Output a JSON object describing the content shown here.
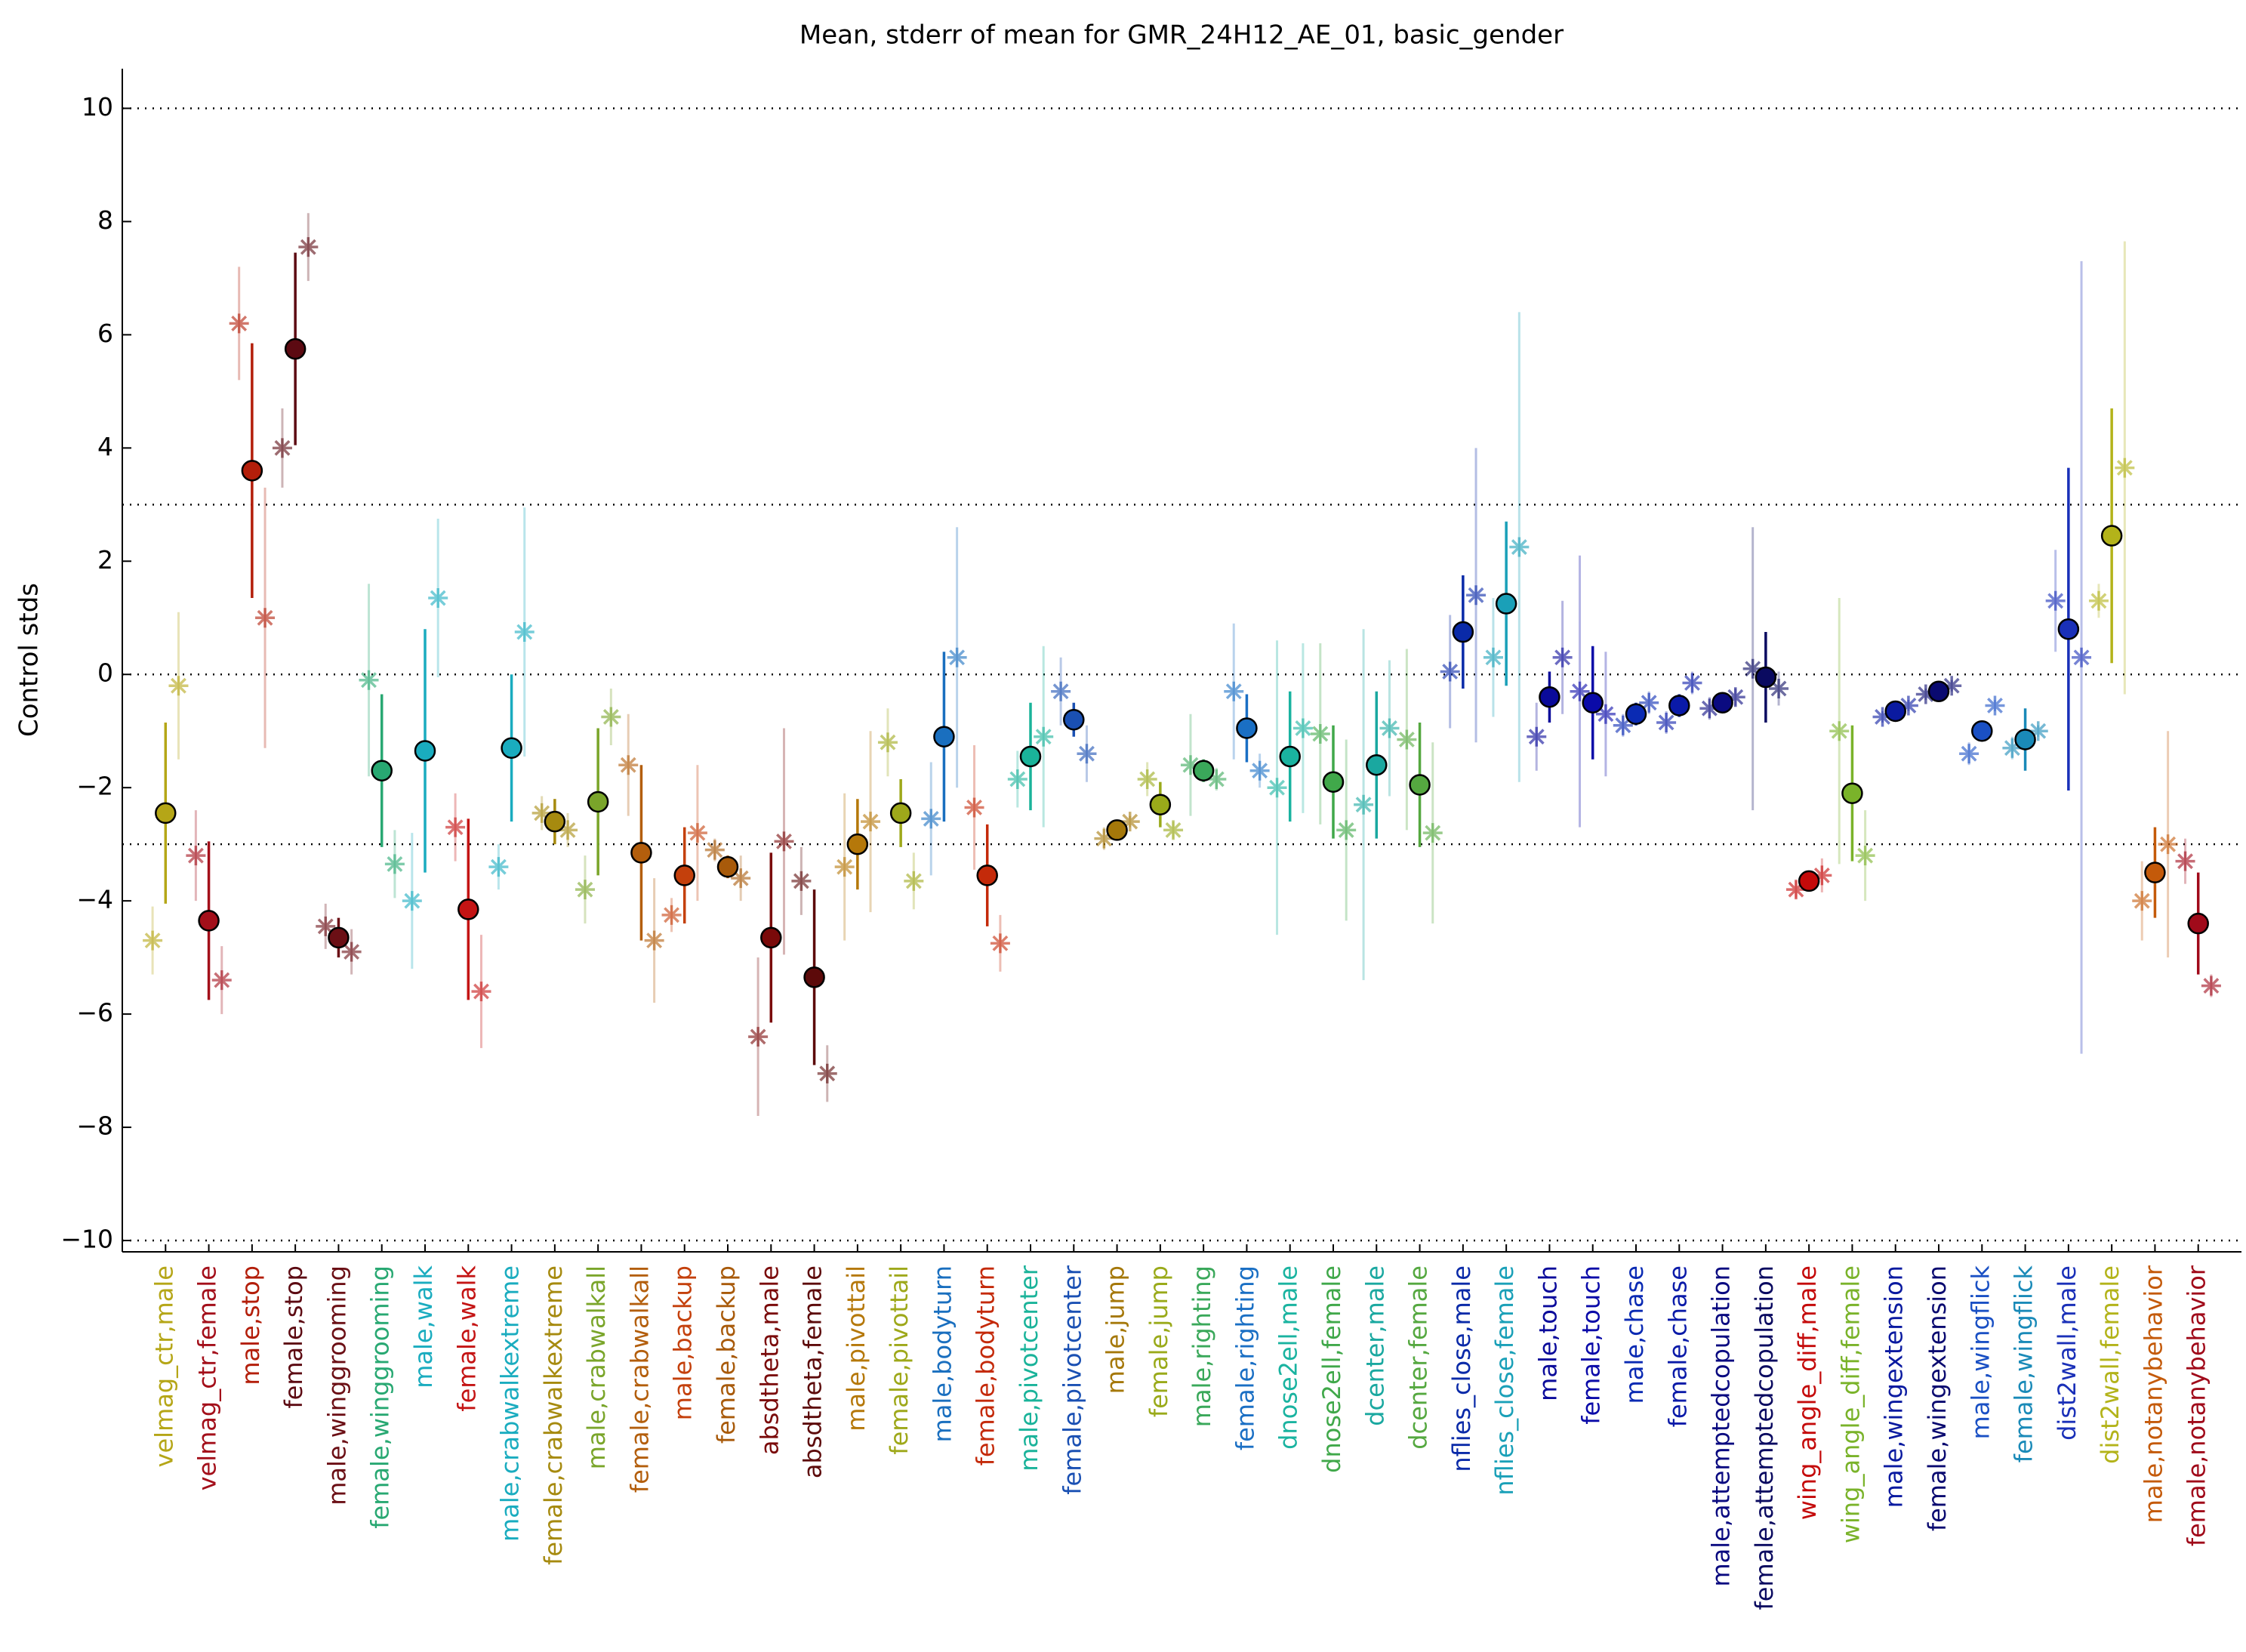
{
  "chart_data": {
    "type": "errorbar",
    "title": "Mean, stderr of mean for GMR_24H12_AE_01, basic_gender",
    "y_label": "Control stds",
    "categories": [
      "velmag_ctr,male",
      "velmag_ctr,female",
      "male,stop",
      "female,stop",
      "male,winggrooming",
      "female,winggrooming",
      "male,walk",
      "female,walk",
      "male,crabwalkextreme",
      "female,crabwalkextreme",
      "male,crabwalkall",
      "female,crabwalkall",
      "male,backup",
      "female,backup",
      "absdtheta,male",
      "absdtheta,female",
      "male,pivottail",
      "female,pivottail",
      "male,bodyturn",
      "female,bodyturn",
      "male,pivotcenter",
      "female,pivotcenter",
      "male,jump",
      "female,jump",
      "male,righting",
      "female,righting",
      "dnose2ell,male",
      "dnose2ell,female",
      "dcenter,male",
      "dcenter,female",
      "nflies_close,male",
      "nflies_close,female",
      "male,touch",
      "female,touch",
      "male,chase",
      "female,chase",
      "male,attemptedcopulation",
      "female,attemptedcopulation",
      "wing_angle_diff,male",
      "wing_angle_diff,female",
      "male,wingextension",
      "female,wingextension",
      "male,wingflick",
      "female,wingflick",
      "dist2wall,male",
      "dist2wall,female",
      "male,notanybehavior",
      "female,notanybehavior"
    ],
    "values": [
      -2.45,
      -4.35,
      3.6,
      5.75,
      -4.65,
      -1.7,
      -1.35,
      -4.15,
      -1.3,
      -2.6,
      -2.25,
      -3.15,
      -3.55,
      -3.4,
      -4.65,
      -5.35,
      -3.0,
      -2.45,
      -1.1,
      -3.55,
      -1.45,
      -0.8,
      -2.75,
      -2.3,
      -1.7,
      -0.95,
      -1.45,
      -1.9,
      -1.6,
      -1.95,
      0.75,
      1.25,
      -0.4,
      -0.5,
      -0.7,
      -0.55,
      -0.5,
      -0.05,
      -3.65,
      -2.1,
      -0.65,
      -0.3,
      -1.0,
      -1.15,
      0.8,
      2.45,
      -3.5,
      -4.4
    ],
    "errors": [
      1.6,
      1.4,
      2.25,
      1.7,
      0.35,
      1.35,
      2.15,
      1.6,
      1.3,
      0.4,
      1.3,
      1.55,
      0.85,
      0.2,
      1.5,
      1.55,
      0.8,
      0.6,
      1.5,
      0.9,
      0.95,
      0.3,
      0.15,
      0.4,
      0.2,
      0.6,
      1.15,
      1.0,
      1.3,
      1.1,
      1.0,
      1.45,
      0.45,
      1.0,
      0.2,
      0.2,
      0.15,
      0.8,
      0.1,
      1.2,
      0.1,
      0.1,
      0.1,
      0.55,
      2.85,
      2.25,
      0.8,
      0.9
    ],
    "left_values": [
      -4.7,
      -3.2,
      6.2,
      4.0,
      -4.45,
      -0.1,
      -4.0,
      -2.7,
      -3.4,
      -2.45,
      -3.8,
      -1.6,
      -4.25,
      -3.1,
      -6.4,
      -3.65,
      -3.4,
      -1.2,
      -2.55,
      -2.35,
      -1.85,
      -0.3,
      -2.9,
      -1.85,
      -1.6,
      -0.3,
      -2.0,
      -1.05,
      -2.3,
      -1.15,
      0.05,
      0.3,
      -1.1,
      -0.3,
      -0.9,
      -0.85,
      -0.6,
      0.1,
      -3.8,
      -1.0,
      -0.75,
      -0.35,
      -1.4,
      -1.3,
      1.3,
      1.3,
      -4.0,
      -3.3
    ],
    "left_errors": [
      0.6,
      0.8,
      1.0,
      0.7,
      0.4,
      1.7,
      1.2,
      0.6,
      0.4,
      0.3,
      0.6,
      0.9,
      0.3,
      0.2,
      1.4,
      0.6,
      1.3,
      0.6,
      1.0,
      1.1,
      0.5,
      0.6,
      0.2,
      0.3,
      0.9,
      1.2,
      2.6,
      1.6,
      3.1,
      1.6,
      1.0,
      1.05,
      0.6,
      2.4,
      0.2,
      0.2,
      0.2,
      2.5,
      0.15,
      2.35,
      0.1,
      0.1,
      0.2,
      0.2,
      0.9,
      0.3,
      0.7,
      0.4
    ],
    "right_values": [
      -0.2,
      -5.4,
      1.0,
      7.55,
      -4.9,
      -3.35,
      1.35,
      -5.6,
      0.75,
      -2.75,
      -0.75,
      -4.7,
      -2.8,
      -3.6,
      -2.95,
      -7.05,
      -2.6,
      -3.65,
      0.3,
      -4.75,
      -1.1,
      -1.4,
      -2.6,
      -2.75,
      -1.85,
      -1.7,
      -0.95,
      -2.75,
      -0.95,
      -2.8,
      1.4,
      2.25,
      0.3,
      -0.7,
      -0.5,
      -0.15,
      -0.4,
      -0.25,
      -3.55,
      -3.2,
      -0.55,
      -0.2,
      -0.55,
      -1.0,
      0.3,
      3.65,
      -3.0,
      -5.5
    ],
    "right_errors": [
      1.3,
      0.6,
      2.3,
      0.6,
      0.4,
      0.6,
      1.4,
      1.0,
      2.2,
      0.3,
      0.5,
      1.1,
      1.2,
      0.4,
      2.0,
      0.5,
      1.6,
      0.5,
      2.3,
      0.5,
      1.6,
      0.5,
      0.1,
      0.15,
      0.2,
      0.3,
      1.5,
      1.6,
      1.2,
      1.6,
      2.6,
      4.15,
      1.0,
      1.1,
      0.2,
      0.2,
      0.15,
      0.3,
      0.3,
      0.8,
      0.1,
      0.1,
      0.1,
      0.1,
      7.0,
      4.0,
      2.0,
      0.2
    ],
    "colors": [
      "#b5a617",
      "#a30f1a",
      "#b31e0a",
      "#5c0a12",
      "#6b0f15",
      "#28a872",
      "#1aacbf",
      "#c41414",
      "#1aacbf",
      "#a68a0f",
      "#7aa52a",
      "#b35e0c",
      "#c4400c",
      "#a85a0a",
      "#7a0a0a",
      "#5c0a0a",
      "#b5780a",
      "#9ea81a",
      "#1a6fbf",
      "#c42a0a",
      "#1ab39a",
      "#1a50b3",
      "#a5780a",
      "#9aaa1a",
      "#3aa85a",
      "#1a6fc4",
      "#1ab3a0",
      "#40a84a",
      "#1aa8a0",
      "#55a840",
      "#0a2aa8",
      "#1aa0b8",
      "#0a0a9a",
      "#0a0aa8",
      "#0a2ab3",
      "#0a1aa8",
      "#0a0a80",
      "#0a0a60",
      "#c40a0a",
      "#7ab32a",
      "#0a1aa0",
      "#0a0a70",
      "#1a50c4",
      "#1a8ab8",
      "#1a30b8",
      "#b3b31a",
      "#c45a0a",
      "#a00a1a"
    ],
    "ylim": [
      -10.2,
      10.7
    ],
    "yticks": [
      {
        "value": -10,
        "label": "−10"
      },
      {
        "value": -8,
        "label": "−8"
      },
      {
        "value": -6,
        "label": "−6"
      },
      {
        "value": -4,
        "label": "−4"
      },
      {
        "value": -2,
        "label": "−2"
      },
      0,
      2,
      4,
      6,
      8,
      10
    ],
    "hlines": [
      -10,
      -3,
      0,
      3,
      10
    ]
  }
}
